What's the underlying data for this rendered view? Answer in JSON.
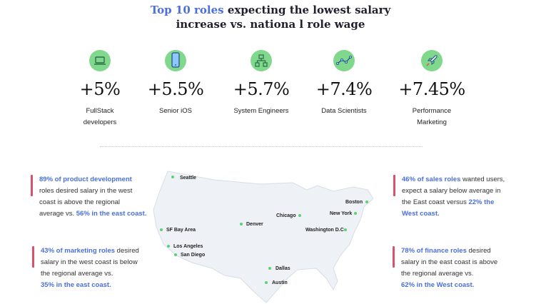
{
  "title": {
    "accent": "Top 10 roles",
    "line1_rest": " expecting the lowest salary",
    "line2": "increase vs. nationa l role wage"
  },
  "colors": {
    "accent_blue": "#4a6fe0",
    "icon_green": "#7fd88b",
    "city_dot_green": "#5cd07a",
    "bar_red": "#d6546b",
    "map_fill": "#eef1f6"
  },
  "roles": [
    {
      "icon": "laptop-icon",
      "pct": "+5%",
      "name_line1": "FullStack",
      "name_line2": "developers"
    },
    {
      "icon": "smartphone-icon",
      "pct": "+5.5%",
      "name_line1": "Senior iOS",
      "name_line2": ""
    },
    {
      "icon": "network-hierarchy-icon",
      "pct": "+5.7%",
      "name_line1": "System Engineers",
      "name_line2": ""
    },
    {
      "icon": "line-chart-icon",
      "pct": "+7.4%",
      "name_line1": "Data Scientists",
      "name_line2": ""
    },
    {
      "icon": "rocket-icon",
      "pct": "+7.45%",
      "name_line1": "Performance",
      "name_line2": "Marketing"
    }
  ],
  "stats": {
    "product": {
      "l1_hl": "89% of product development",
      "l2": "roles desired salary in the west",
      "l3": "coast is above the regional",
      "l4_pre": "average vs. ",
      "l4_hl": "56% in the east coast."
    },
    "marketing": {
      "l1_hl": "43% of marketing roles",
      "l1_rest": " desired",
      "l2": "salary in the west coast is below",
      "l3": "the regional average vs.",
      "l4_hl": "35% in the east coast."
    },
    "sales": {
      "l1_hl": "46% of sales roles",
      "l1_rest": " wanted users,",
      "l2": "expect a salary below average in",
      "l3_pre": "the East coast versus ",
      "l3_hl": "22% the",
      "l4_hl": "West coast."
    },
    "finance": {
      "l1_hl": "78% of finance roles",
      "l1_rest": " desired",
      "l2": "salary in the east coast is above",
      "l3": "the regional average vs.",
      "l4_hl": "62% in the West coast."
    }
  },
  "cities": {
    "seattle": "Seattle",
    "sf": "SF Bay Area",
    "la": "Los Angeles",
    "sd": "San Diego",
    "denver": "Denver",
    "chicago": "Chicago",
    "boston": "Boston",
    "ny": "New York",
    "dc": "Washington D.C",
    "dallas": "Dallas",
    "austin": "Austin"
  }
}
